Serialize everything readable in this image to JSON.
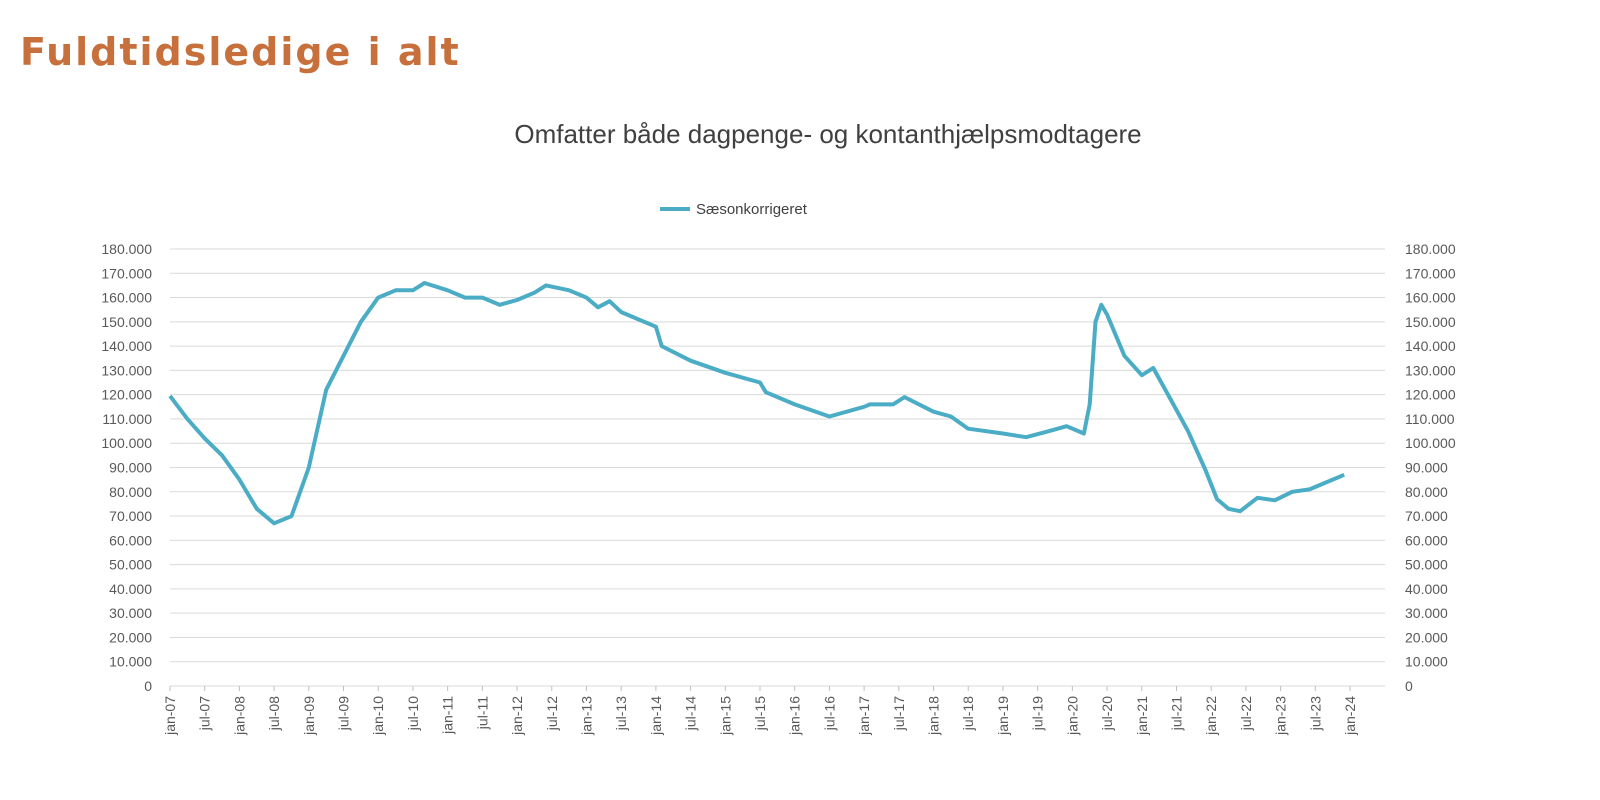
{
  "heading": "Fuldtidsledige i alt",
  "chart_data": {
    "type": "line",
    "title": "Omfatter både dagpenge- og kontanthjælpsmodtagere",
    "legend_position": "top",
    "grid": true,
    "line_color": "#4bacc6",
    "ylim": [
      0,
      180000
    ],
    "y_ticks": [
      "0",
      "10.000",
      "20.000",
      "30.000",
      "40.000",
      "50.000",
      "60.000",
      "70.000",
      "80.000",
      "90.000",
      "100.000",
      "110.000",
      "120.000",
      "130.000",
      "140.000",
      "150.000",
      "160.000",
      "170.000",
      "180.000"
    ],
    "x_ticks": [
      "jan-07",
      "jul-07",
      "jan-08",
      "jul-08",
      "jan-09",
      "jul-09",
      "jan-10",
      "jul-10",
      "jan-11",
      "jul-11",
      "jan-12",
      "jul-12",
      "jan-13",
      "jul-13",
      "jan-14",
      "jul-14",
      "jan-15",
      "jul-15",
      "jan-16",
      "jul-16",
      "jan-17",
      "jul-17",
      "jan-18",
      "jul-18",
      "jan-19",
      "jul-19",
      "jan-20",
      "jul-20",
      "jan-21",
      "jul-21",
      "jan-22",
      "jul-22",
      "jan-23",
      "jul-23",
      "jan-24"
    ],
    "series": [
      {
        "name": "Sæsonkorrigeret",
        "x": [
          "2007-01",
          "2007-04",
          "2007-07",
          "2007-10",
          "2008-01",
          "2008-04",
          "2008-07",
          "2008-10",
          "2009-01",
          "2009-04",
          "2009-07",
          "2009-10",
          "2010-01",
          "2010-04",
          "2010-07",
          "2010-09",
          "2011-01",
          "2011-04",
          "2011-07",
          "2011-10",
          "2012-01",
          "2012-04",
          "2012-06",
          "2012-10",
          "2013-01",
          "2013-03",
          "2013-05",
          "2013-07",
          "2014-01",
          "2014-02",
          "2014-07",
          "2015-01",
          "2015-07",
          "2015-08",
          "2016-01",
          "2016-07",
          "2017-01",
          "2017-02",
          "2017-06",
          "2017-08",
          "2018-01",
          "2018-04",
          "2018-07",
          "2019-01",
          "2019-05",
          "2019-09",
          "2019-12",
          "2020-03",
          "2020-04",
          "2020-05",
          "2020-06",
          "2020-07",
          "2020-10",
          "2021-01",
          "2021-03",
          "2021-06",
          "2021-09",
          "2021-12",
          "2022-02",
          "2022-04",
          "2022-06",
          "2022-09",
          "2022-12",
          "2023-03",
          "2023-06",
          "2023-12"
        ],
        "values": [
          119500,
          110000,
          102000,
          95000,
          85000,
          73000,
          67000,
          70000,
          90000,
          122000,
          136000,
          150000,
          160000,
          163000,
          163000,
          166000,
          163000,
          160000,
          160000,
          157000,
          159000,
          162000,
          165000,
          163000,
          160000,
          156000,
          158500,
          154000,
          148000,
          140000,
          134000,
          129000,
          125000,
          121000,
          116000,
          111000,
          115000,
          116000,
          116000,
          119000,
          113000,
          111000,
          106000,
          104000,
          102500,
          105000,
          107000,
          104000,
          116000,
          150000,
          157000,
          153000,
          136000,
          128000,
          131000,
          118000,
          105000,
          89000,
          77000,
          73000,
          72000,
          77500,
          76500,
          80000,
          81000,
          87000
        ]
      }
    ]
  }
}
